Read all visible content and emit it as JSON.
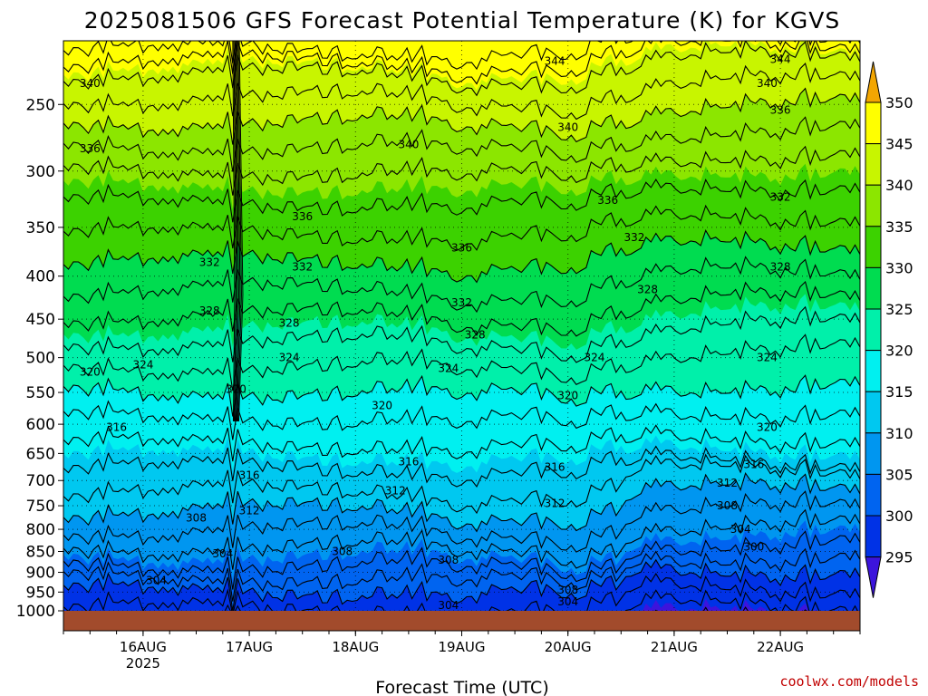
{
  "chart_data": {
    "type": "heatmap",
    "title": "2025081506 GFS Forecast Potential Temperature (K) for KGVS",
    "xlabel": "Forecast Time (UTC)",
    "ylabel": "",
    "y_axis": {
      "scale": "log",
      "inverted": true,
      "ticks": [
        250,
        300,
        350,
        400,
        450,
        500,
        550,
        600,
        650,
        700,
        750,
        800,
        850,
        900,
        950,
        1000
      ],
      "range": [
        210,
        1000
      ]
    },
    "x_axis": {
      "range": [
        "2025-08-15 06",
        "2025-08-22 18"
      ],
      "ticks": [
        {
          "label": "16AUG",
          "sub": "2025",
          "at": "2025-08-16 00"
        },
        {
          "label": "17AUG",
          "sub": "",
          "at": "2025-08-17 00"
        },
        {
          "label": "18AUG",
          "sub": "",
          "at": "2025-08-18 00"
        },
        {
          "label": "19AUG",
          "sub": "",
          "at": "2025-08-19 00"
        },
        {
          "label": "20AUG",
          "sub": "",
          "at": "2025-08-20 00"
        },
        {
          "label": "21AUG",
          "sub": "",
          "at": "2025-08-21 00"
        },
        {
          "label": "22AUG",
          "sub": "",
          "at": "2025-08-22 00"
        }
      ]
    },
    "grid": "dotted",
    "colorbar": {
      "placement": "right",
      "ticks": [
        350,
        345,
        340,
        335,
        330,
        325,
        320,
        315,
        310,
        305,
        300,
        295
      ],
      "bands": [
        {
          "range": "above 350",
          "color": "#f3a602"
        },
        {
          "range": "345-350",
          "color": "#ffff00"
        },
        {
          "range": "340-345",
          "color": "#c8f500"
        },
        {
          "range": "335-340",
          "color": "#8ce600"
        },
        {
          "range": "330-335",
          "color": "#3cd200"
        },
        {
          "range": "325-330",
          "color": "#00dc50"
        },
        {
          "range": "320-325",
          "color": "#00f0aa"
        },
        {
          "range": "315-320",
          "color": "#00f0f0"
        },
        {
          "range": "310-315",
          "color": "#00c8f0"
        },
        {
          "range": "305-310",
          "color": "#0096f0"
        },
        {
          "range": "300-305",
          "color": "#0064f0"
        },
        {
          "range": "295-300",
          "color": "#0032e6"
        },
        {
          "range": "below 295",
          "color": "#3c14dc"
        }
      ]
    },
    "profile_levels": [
      {
        "theta": 348,
        "p": 215
      },
      {
        "theta": 344,
        "p": 230
      },
      {
        "theta": 340,
        "p": 262
      },
      {
        "theta": 336,
        "p": 300
      },
      {
        "theta": 332,
        "p": 355
      },
      {
        "theta": 328,
        "p": 415
      },
      {
        "theta": 324,
        "p": 478
      },
      {
        "theta": 320,
        "p": 548
      },
      {
        "theta": 316,
        "p": 632
      },
      {
        "theta": 312,
        "p": 720
      },
      {
        "theta": 308,
        "p": 800
      },
      {
        "theta": 304,
        "p": 880
      },
      {
        "theta": 300,
        "p": 945
      }
    ],
    "contour_interval": 2,
    "contour_labels": [
      {
        "text": "344",
        "t": "2025-08-19 21",
        "p": 222
      },
      {
        "text": "344",
        "t": "2025-08-22 00",
        "p": 221
      },
      {
        "text": "340",
        "t": "2025-08-15 12",
        "p": 236
      },
      {
        "text": "340",
        "t": "2025-08-21 21",
        "p": 236
      },
      {
        "text": "340",
        "t": "2025-08-18 12",
        "p": 279
      },
      {
        "text": "340",
        "t": "2025-08-20 00",
        "p": 266
      },
      {
        "text": "336",
        "t": "2025-08-15 12",
        "p": 282
      },
      {
        "text": "336",
        "t": "2025-08-22 00",
        "p": 254
      },
      {
        "text": "336",
        "t": "2025-08-17 12",
        "p": 340
      },
      {
        "text": "336",
        "t": "2025-08-20 09",
        "p": 325
      },
      {
        "text": "336",
        "t": "2025-08-19 00",
        "p": 370
      },
      {
        "text": "332",
        "t": "2025-08-22 00",
        "p": 322
      },
      {
        "text": "332",
        "t": "2025-08-20 15",
        "p": 360
      },
      {
        "text": "332",
        "t": "2025-08-16 15",
        "p": 385
      },
      {
        "text": "332",
        "t": "2025-08-17 12",
        "p": 390
      },
      {
        "text": "332",
        "t": "2025-08-19 00",
        "p": 430
      },
      {
        "text": "328",
        "t": "2025-08-22 00",
        "p": 390
      },
      {
        "text": "328",
        "t": "2025-08-20 18",
        "p": 415
      },
      {
        "text": "328",
        "t": "2025-08-16 15",
        "p": 440
      },
      {
        "text": "328",
        "t": "2025-08-17 09",
        "p": 455
      },
      {
        "text": "328",
        "t": "2025-08-19 03",
        "p": 470
      },
      {
        "text": "324",
        "t": "2025-08-16 00",
        "p": 510
      },
      {
        "text": "324",
        "t": "2025-08-17 09",
        "p": 500
      },
      {
        "text": "324",
        "t": "2025-08-18 21",
        "p": 515
      },
      {
        "text": "324",
        "t": "2025-08-20 06",
        "p": 500
      },
      {
        "text": "324",
        "t": "2025-08-21 21",
        "p": 500
      },
      {
        "text": "320",
        "t": "2025-08-15 12",
        "p": 520
      },
      {
        "text": "320",
        "t": "2025-08-16 21",
        "p": 545
      },
      {
        "text": "320",
        "t": "2025-08-18 06",
        "p": 570
      },
      {
        "text": "320",
        "t": "2025-08-20 00",
        "p": 555
      },
      {
        "text": "320",
        "t": "2025-08-21 21",
        "p": 605
      },
      {
        "text": "316",
        "t": "2025-08-15 18",
        "p": 605
      },
      {
        "text": "316",
        "t": "2025-08-18 12",
        "p": 665
      },
      {
        "text": "316",
        "t": "2025-08-19 21",
        "p": 675
      },
      {
        "text": "316",
        "t": "2025-08-21 18",
        "p": 670
      },
      {
        "text": "316",
        "t": "2025-08-17 00",
        "p": 690
      },
      {
        "text": "312",
        "t": "2025-08-18 09",
        "p": 720
      },
      {
        "text": "312",
        "t": "2025-08-21 12",
        "p": 705
      },
      {
        "text": "312",
        "t": "2025-08-19 21",
        "p": 745
      },
      {
        "text": "312",
        "t": "2025-08-17 00",
        "p": 760
      },
      {
        "text": "308",
        "t": "2025-08-16 12",
        "p": 775
      },
      {
        "text": "308",
        "t": "2025-08-21 12",
        "p": 750
      },
      {
        "text": "308",
        "t": "2025-08-17 21",
        "p": 850
      },
      {
        "text": "308",
        "t": "2025-08-18 21",
        "p": 870
      },
      {
        "text": "308",
        "t": "2025-08-20 00",
        "p": 945
      },
      {
        "text": "304",
        "t": "2025-08-16 18",
        "p": 855
      },
      {
        "text": "304",
        "t": "2025-08-21 15",
        "p": 800
      },
      {
        "text": "304",
        "t": "2025-08-16 03",
        "p": 920
      },
      {
        "text": "304",
        "t": "2025-08-18 21",
        "p": 985
      },
      {
        "text": "304",
        "t": "2025-08-20 00",
        "p": 975
      },
      {
        "text": "300",
        "t": "2025-08-21 18",
        "p": 840
      }
    ]
  },
  "credit": "coolwx.com/models"
}
